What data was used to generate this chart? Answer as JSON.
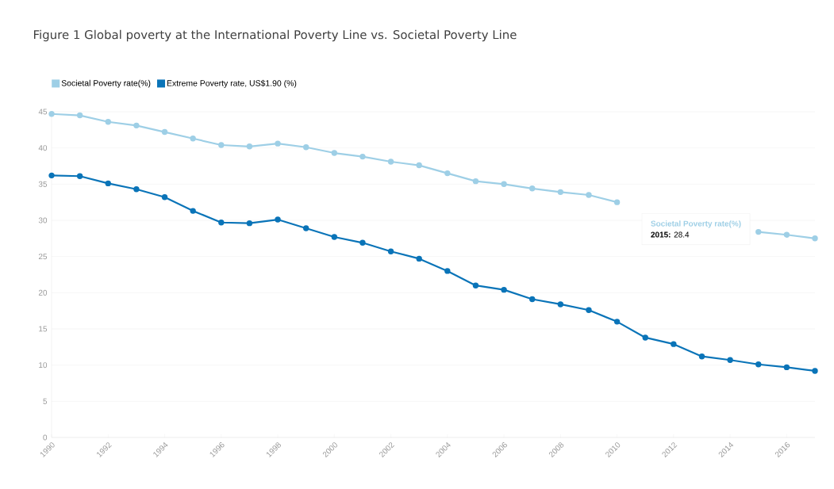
{
  "chart_data": {
    "type": "line",
    "title": "Figure 1 Global poverty at the International Poverty Line vs. Societal Poverty Line",
    "x": [
      1990,
      1991,
      1992,
      1993,
      1994,
      1995,
      1996,
      1997,
      1998,
      1999,
      2000,
      2001,
      2002,
      2003,
      2004,
      2005,
      2006,
      2007,
      2008,
      2009,
      2010,
      2011,
      2012,
      2013,
      2014,
      2015,
      2016,
      2017
    ],
    "series": [
      {
        "name": "Societal Poverty rate(%)",
        "color": "#9ecfe6",
        "values": [
          44.7,
          44.5,
          43.6,
          43.1,
          42.2,
          41.3,
          40.4,
          40.2,
          40.6,
          40.1,
          39.3,
          38.8,
          38.1,
          37.6,
          36.5,
          35.4,
          35.0,
          34.4,
          33.9,
          33.5,
          32.5,
          null,
          null,
          null,
          null,
          28.4,
          28.0,
          27.5
        ]
      },
      {
        "name": "Extreme Poverty rate, US$1.90 (%)",
        "color": "#0a74b8",
        "values": [
          36.2,
          36.1,
          35.1,
          34.3,
          33.2,
          31.3,
          29.7,
          29.6,
          30.1,
          28.9,
          27.7,
          26.9,
          25.7,
          24.7,
          23.0,
          21.0,
          20.4,
          19.1,
          18.4,
          17.6,
          16.0,
          13.8,
          12.9,
          11.2,
          10.7,
          10.1,
          9.7,
          9.2
        ]
      }
    ],
    "xlim": [
      1990,
      2017
    ],
    "xticks": [
      1990,
      1992,
      1994,
      1996,
      1998,
      2000,
      2002,
      2004,
      2006,
      2008,
      2010,
      2012,
      2014,
      2016
    ],
    "ylim": [
      0,
      45
    ],
    "yticks": [
      0,
      5,
      10,
      15,
      20,
      25,
      30,
      35,
      40,
      45
    ],
    "grid": "y",
    "legend": "top left",
    "marker": "circle",
    "line_style": "solid",
    "annotations": [
      "**2015:** 28.4"
    ]
  }
}
